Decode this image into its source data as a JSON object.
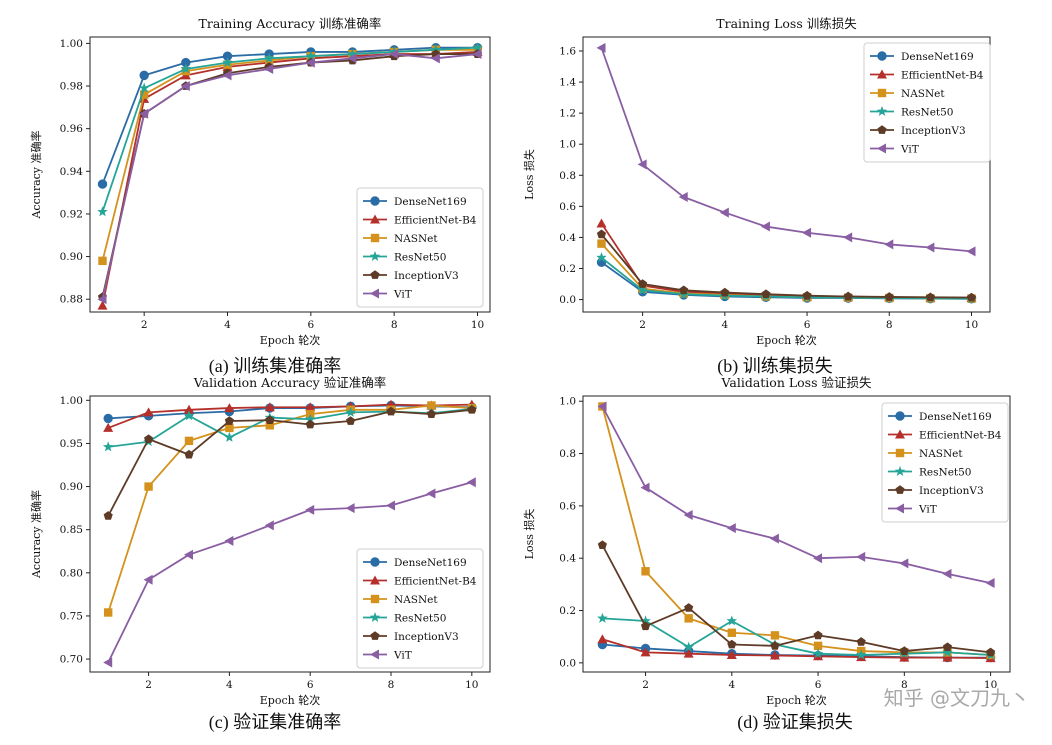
{
  "watermark": "知乎 @文刀九丶",
  "chart_data": [
    {
      "type": "line",
      "title": "Training Accuracy 训练准确率",
      "caption": "(a) 训练集准确率",
      "xlabel": "Epoch 轮次",
      "ylabel": "Accuracy 准确率",
      "xlim": [
        0.7,
        10.3
      ],
      "ylim": [
        0.874,
        1.003
      ],
      "xticks": [
        2,
        4,
        6,
        8,
        10
      ],
      "yticks": [
        0.88,
        0.9,
        0.92,
        0.94,
        0.96,
        0.98,
        1.0
      ],
      "ytick_labels": [
        "0.88",
        "0.90",
        "0.92",
        "0.94",
        "0.96",
        "0.98",
        "1.00"
      ],
      "legend": "lower-right",
      "x": [
        1,
        2,
        3,
        4,
        5,
        6,
        7,
        8,
        9,
        10
      ],
      "series": [
        {
          "name": "DenseNet169",
          "marker": "circle",
          "color": "#2a6ca6",
          "values": [
            0.934,
            0.985,
            0.991,
            0.994,
            0.995,
            0.996,
            0.996,
            0.997,
            0.998,
            0.998
          ]
        },
        {
          "name": "EfficientNet-B4",
          "marker": "triangle-up",
          "color": "#b5302b",
          "values": [
            0.877,
            0.974,
            0.985,
            0.989,
            0.991,
            0.993,
            0.994,
            0.995,
            0.995,
            0.996
          ]
        },
        {
          "name": "NASNet",
          "marker": "square",
          "color": "#d4921c",
          "values": [
            0.898,
            0.976,
            0.987,
            0.99,
            0.992,
            0.994,
            0.995,
            0.996,
            0.997,
            0.997
          ]
        },
        {
          "name": "ResNet50",
          "marker": "star",
          "color": "#25a597",
          "values": [
            0.921,
            0.979,
            0.988,
            0.991,
            0.993,
            0.994,
            0.995,
            0.996,
            0.997,
            0.998
          ]
        },
        {
          "name": "InceptionV3",
          "marker": "pentagon",
          "color": "#5e3b26",
          "values": [
            0.881,
            0.967,
            0.98,
            0.986,
            0.989,
            0.991,
            0.992,
            0.994,
            0.995,
            0.995
          ]
        },
        {
          "name": "ViT",
          "marker": "triangle-left",
          "color": "#8a5ea3",
          "values": [
            0.88,
            0.967,
            0.98,
            0.985,
            0.988,
            0.991,
            0.993,
            0.995,
            0.993,
            0.995
          ]
        }
      ]
    },
    {
      "type": "line",
      "title": "Training Loss 训练损失",
      "caption": "(b) 训练集损失",
      "xlabel": "Epoch 轮次",
      "ylabel": "Loss 损失",
      "xlim": [
        0.55,
        10.45
      ],
      "ylim": [
        -0.08,
        1.69
      ],
      "xticks": [
        2,
        4,
        6,
        8,
        10
      ],
      "yticks": [
        0.0,
        0.2,
        0.4,
        0.6,
        0.8,
        1.0,
        1.2,
        1.4,
        1.6
      ],
      "ytick_labels": [
        "0.0",
        "0.2",
        "0.4",
        "0.6",
        "0.8",
        "1.0",
        "1.2",
        "1.4",
        "1.6"
      ],
      "legend": "upper-right",
      "x": [
        1,
        2,
        3,
        4,
        5,
        6,
        7,
        8,
        9,
        10
      ],
      "series": [
        {
          "name": "DenseNet169",
          "marker": "circle",
          "color": "#2a6ca6",
          "values": [
            0.24,
            0.05,
            0.03,
            0.02,
            0.015,
            0.01,
            0.01,
            0.008,
            0.006,
            0.005
          ]
        },
        {
          "name": "EfficientNet-B4",
          "marker": "triangle-up",
          "color": "#b5302b",
          "values": [
            0.49,
            0.09,
            0.05,
            0.04,
            0.03,
            0.02,
            0.02,
            0.015,
            0.012,
            0.01
          ]
        },
        {
          "name": "NASNet",
          "marker": "square",
          "color": "#d4921c",
          "values": [
            0.36,
            0.07,
            0.04,
            0.03,
            0.02,
            0.015,
            0.012,
            0.01,
            0.008,
            0.007
          ]
        },
        {
          "name": "ResNet50",
          "marker": "star",
          "color": "#25a597",
          "values": [
            0.27,
            0.06,
            0.035,
            0.025,
            0.02,
            0.015,
            0.012,
            0.01,
            0.008,
            0.006
          ]
        },
        {
          "name": "InceptionV3",
          "marker": "pentagon",
          "color": "#5e3b26",
          "values": [
            0.42,
            0.1,
            0.06,
            0.045,
            0.035,
            0.025,
            0.02,
            0.017,
            0.015,
            0.013
          ]
        },
        {
          "name": "ViT",
          "marker": "triangle-left",
          "color": "#8a5ea3",
          "values": [
            1.62,
            0.87,
            0.66,
            0.56,
            0.47,
            0.43,
            0.4,
            0.355,
            0.335,
            0.31
          ]
        }
      ]
    },
    {
      "type": "line",
      "title": "Validation Accuracy 验证准确率",
      "caption": "(c) 验证集准确率",
      "xlabel": "Epoch 轮次",
      "ylabel": "Accuracy 准确率",
      "xlim": [
        0.55,
        10.45
      ],
      "ylim": [
        0.685,
        1.005
      ],
      "xticks": [
        2,
        4,
        6,
        8,
        10
      ],
      "yticks": [
        0.7,
        0.75,
        0.8,
        0.85,
        0.9,
        0.95,
        1.0
      ],
      "ytick_labels": [
        "0.70",
        "0.75",
        "0.80",
        "0.85",
        "0.90",
        "0.95",
        "1.00"
      ],
      "legend": "lower-right",
      "x": [
        1,
        2,
        3,
        4,
        5,
        6,
        7,
        8,
        9,
        10
      ],
      "series": [
        {
          "name": "DenseNet169",
          "marker": "circle",
          "color": "#2a6ca6",
          "values": [
            0.979,
            0.982,
            0.985,
            0.987,
            0.991,
            0.991,
            0.993,
            0.994,
            0.993,
            0.992
          ]
        },
        {
          "name": "EfficientNet-B4",
          "marker": "triangle-up",
          "color": "#b5302b",
          "values": [
            0.968,
            0.986,
            0.989,
            0.991,
            0.992,
            0.992,
            0.993,
            0.995,
            0.994,
            0.995
          ]
        },
        {
          "name": "NASNet",
          "marker": "square",
          "color": "#d4921c",
          "values": [
            0.754,
            0.9,
            0.953,
            0.968,
            0.971,
            0.984,
            0.989,
            0.989,
            0.994,
            0.991
          ]
        },
        {
          "name": "ResNet50",
          "marker": "star",
          "color": "#25a597",
          "values": [
            0.946,
            0.952,
            0.982,
            0.957,
            0.98,
            0.978,
            0.986,
            0.987,
            0.985,
            0.99
          ]
        },
        {
          "name": "InceptionV3",
          "marker": "pentagon",
          "color": "#5e3b26",
          "values": [
            0.866,
            0.955,
            0.937,
            0.976,
            0.977,
            0.972,
            0.976,
            0.987,
            0.984,
            0.989
          ]
        },
        {
          "name": "ViT",
          "marker": "triangle-left",
          "color": "#8a5ea3",
          "values": [
            0.696,
            0.792,
            0.821,
            0.837,
            0.855,
            0.873,
            0.875,
            0.878,
            0.892,
            0.905
          ]
        }
      ]
    },
    {
      "type": "line",
      "title": "Validation Loss 验证损失",
      "caption": "(d) 验证集损失",
      "xlabel": "Epoch 轮次",
      "ylabel": "Loss 损失",
      "xlim": [
        0.55,
        10.45
      ],
      "ylim": [
        -0.035,
        1.02
      ],
      "xticks": [
        2,
        4,
        6,
        8,
        10
      ],
      "yticks": [
        0.0,
        0.2,
        0.4,
        0.6,
        0.8,
        1.0
      ],
      "ytick_labels": [
        "0.0",
        "0.2",
        "0.4",
        "0.6",
        "0.8",
        "1.0"
      ],
      "legend": "upper-right",
      "x": [
        1,
        2,
        3,
        4,
        5,
        6,
        7,
        8,
        9,
        10
      ],
      "series": [
        {
          "name": "DenseNet169",
          "marker": "circle",
          "color": "#2a6ca6",
          "values": [
            0.07,
            0.055,
            0.045,
            0.035,
            0.03,
            0.028,
            0.025,
            0.022,
            0.02,
            0.02
          ]
        },
        {
          "name": "EfficientNet-B4",
          "marker": "triangle-up",
          "color": "#b5302b",
          "values": [
            0.09,
            0.04,
            0.035,
            0.03,
            0.028,
            0.025,
            0.022,
            0.02,
            0.02,
            0.018
          ]
        },
        {
          "name": "NASNet",
          "marker": "square",
          "color": "#d4921c",
          "values": [
            0.98,
            0.35,
            0.17,
            0.115,
            0.105,
            0.065,
            0.045,
            0.04,
            0.04,
            0.03
          ]
        },
        {
          "name": "ResNet50",
          "marker": "star",
          "color": "#25a597",
          "values": [
            0.17,
            0.16,
            0.06,
            0.16,
            0.07,
            0.035,
            0.03,
            0.035,
            0.04,
            0.03
          ]
        },
        {
          "name": "InceptionV3",
          "marker": "pentagon",
          "color": "#5e3b26",
          "values": [
            0.45,
            0.14,
            0.21,
            0.07,
            0.065,
            0.105,
            0.08,
            0.045,
            0.06,
            0.04
          ]
        },
        {
          "name": "ViT",
          "marker": "triangle-left",
          "color": "#8a5ea3",
          "values": [
            0.98,
            0.67,
            0.565,
            0.515,
            0.475,
            0.4,
            0.405,
            0.38,
            0.34,
            0.305
          ]
        }
      ]
    }
  ]
}
